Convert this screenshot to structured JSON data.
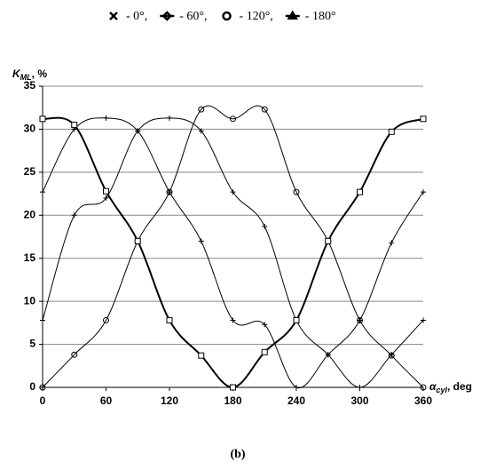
{
  "chart_data": {
    "type": "line",
    "caption": "(b)",
    "y_label": {
      "main": "K",
      "sub": "ML",
      "rest": ", %"
    },
    "x_label": {
      "main": "α",
      "sub": "cyl",
      "rest": ", deg"
    },
    "x": [
      0,
      30,
      60,
      90,
      120,
      150,
      180,
      210,
      240,
      270,
      300,
      330,
      360
    ],
    "xlim": [
      0,
      360
    ],
    "xticks": [
      0,
      60,
      120,
      180,
      240,
      300,
      360
    ],
    "ylim": [
      0,
      35
    ],
    "yticks": [
      0,
      5,
      10,
      15,
      20,
      25,
      30,
      35
    ],
    "grid": true,
    "series": [
      {
        "name": "- 0°,",
        "color": "#000000",
        "marker": "plus",
        "legend_marker": "cross",
        "line_width": 1,
        "values": [
          22.7,
          30,
          31.3,
          29.8,
          22.7,
          17,
          7.8,
          7.3,
          0,
          3.8,
          7.8,
          16.8,
          22.7
        ]
      },
      {
        "name": "- 60°,",
        "color": "#000000",
        "marker": "plus",
        "legend_marker": "diamond",
        "line_width": 1,
        "values": [
          7.8,
          20,
          22,
          29.8,
          31.3,
          29.8,
          22.7,
          18.7,
          7.8,
          3.8,
          0,
          3.8,
          7.8
        ]
      },
      {
        "name": "- 120°,",
        "color": "#000000",
        "marker": "circle",
        "legend_marker": "circle",
        "line_width": 1,
        "values": [
          0,
          3.8,
          7.8,
          17,
          22.7,
          32.3,
          31.2,
          32.3,
          22.7,
          17,
          7.8,
          3.7,
          0
        ]
      },
      {
        "name": "- 180°",
        "color": "#000000",
        "marker": "square",
        "legend_marker": "triangle",
        "line_width": 2,
        "values": [
          31.2,
          30.5,
          22.8,
          17,
          7.8,
          3.7,
          0,
          4.1,
          7.8,
          17,
          22.7,
          29.7,
          31.2
        ]
      }
    ]
  }
}
